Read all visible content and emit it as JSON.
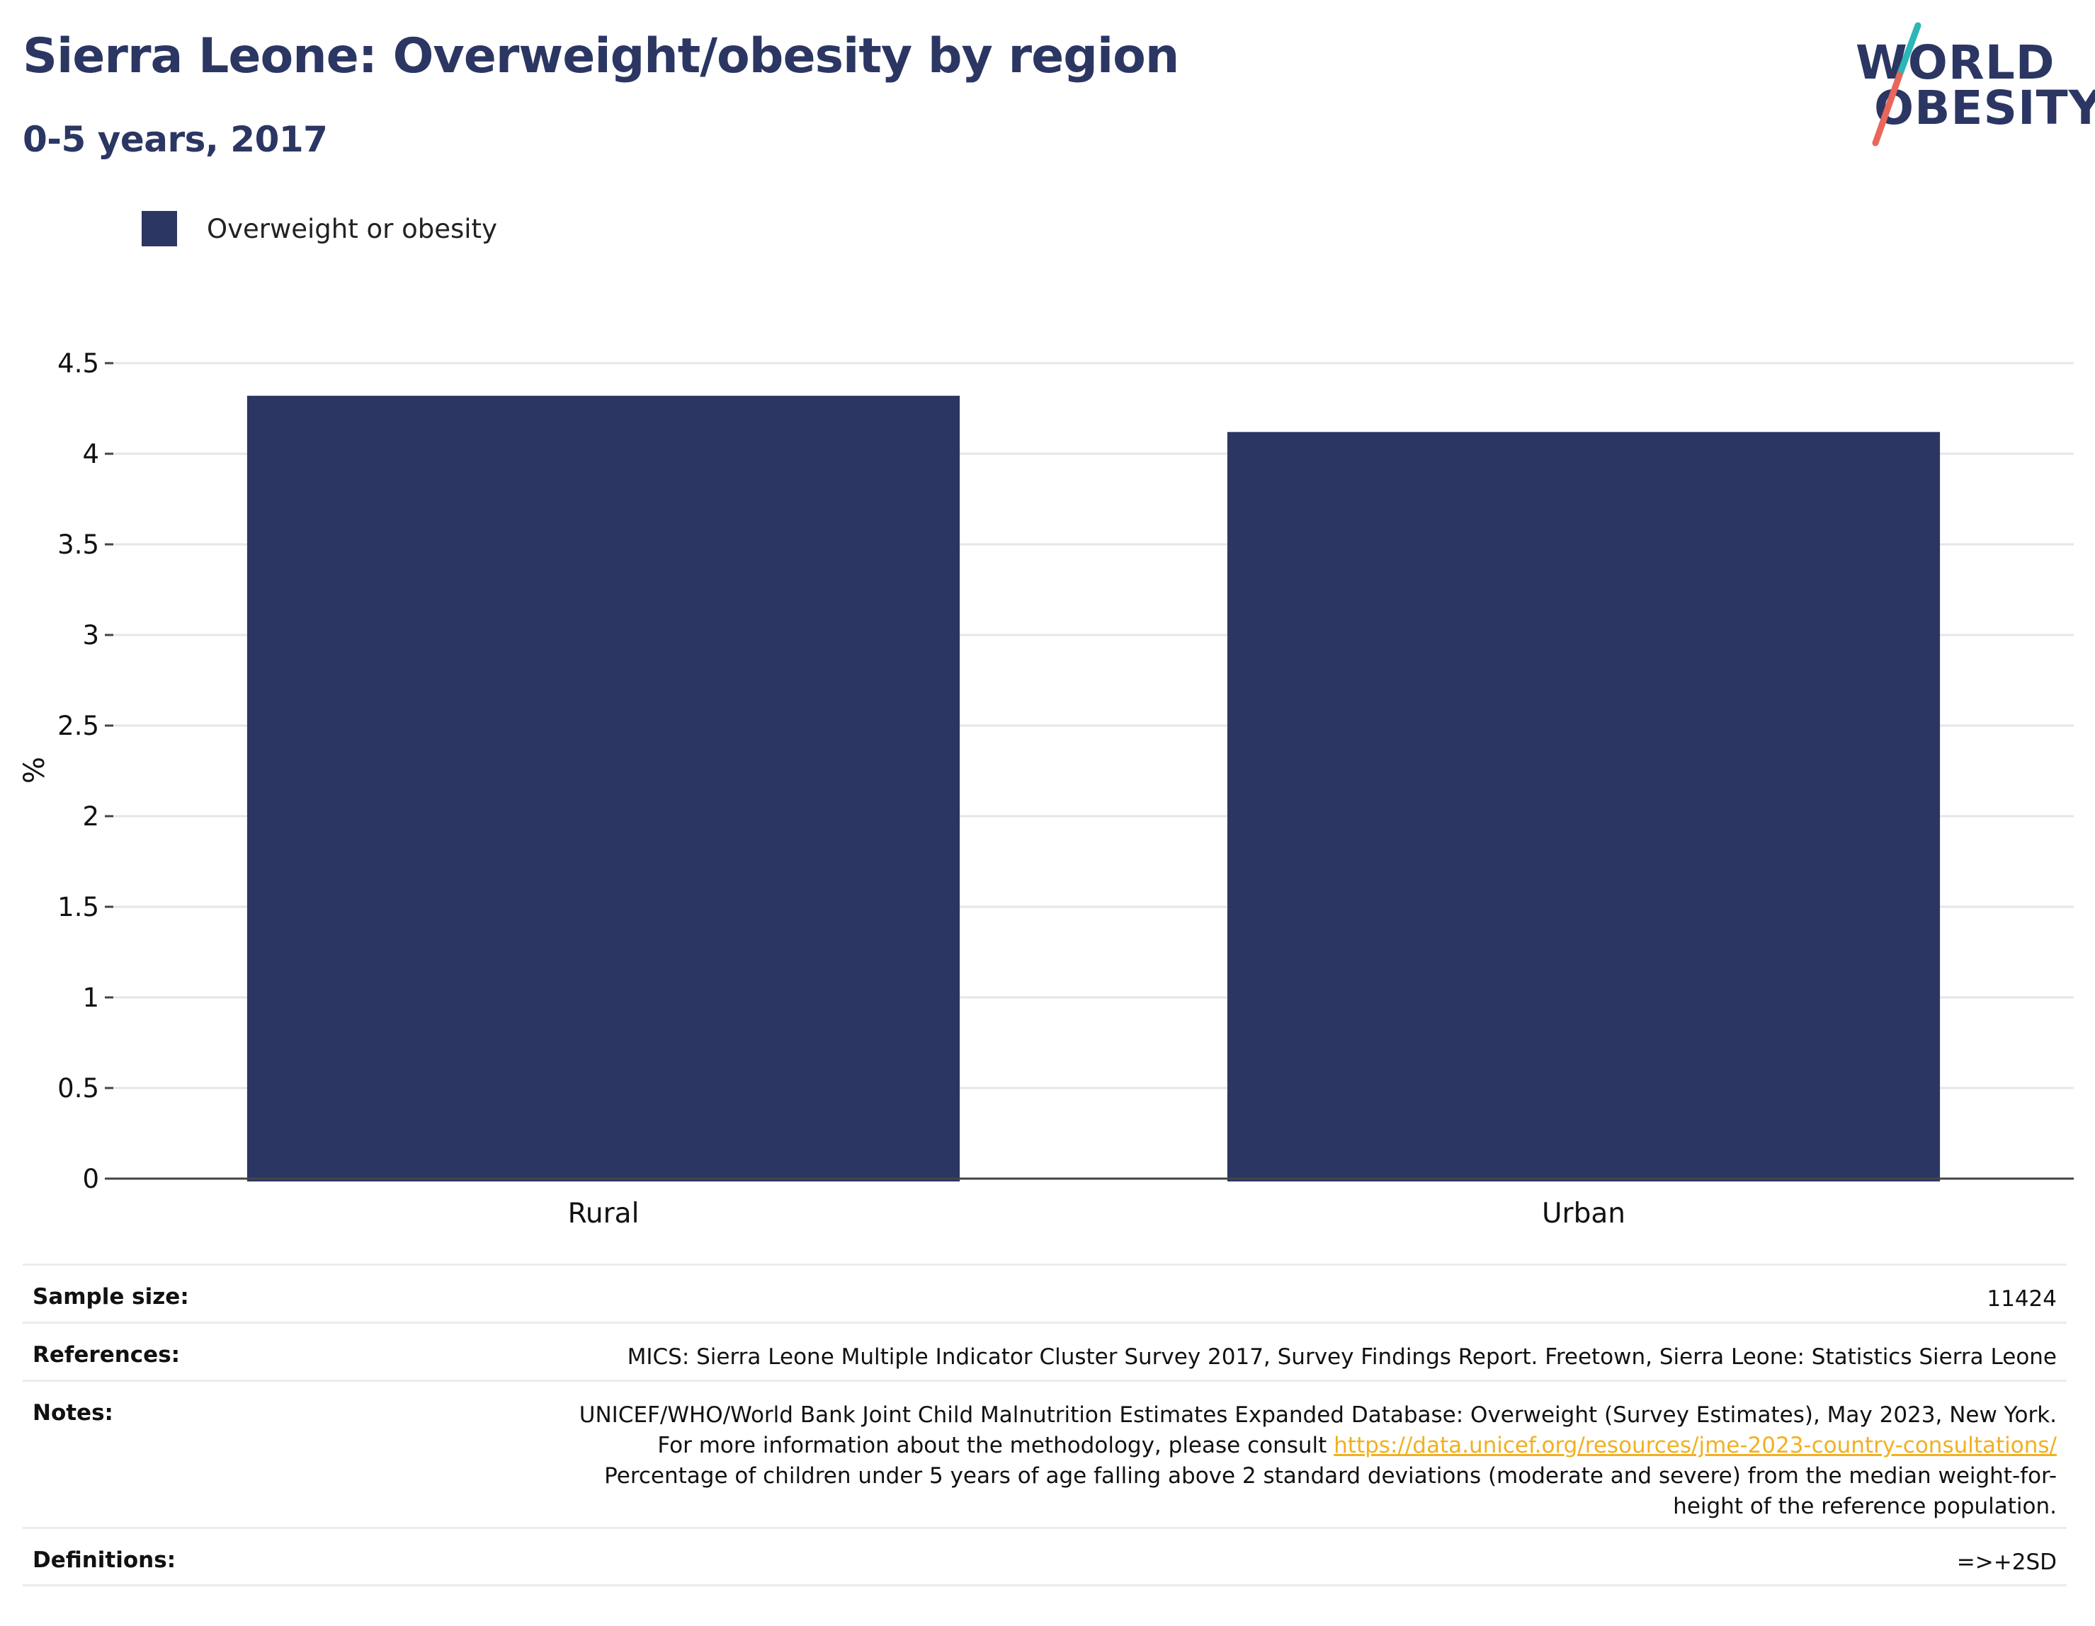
{
  "header": {
    "title": "Sierra Leone: Overweight/obesity by region",
    "subtitle": "0-5 years, 2017"
  },
  "logo": {
    "line1": "WORLD",
    "line2": "OBESITY",
    "colors": {
      "text": "#2b3663",
      "slash_top": "#2ab7b5",
      "slash_bottom": "#e8665a"
    }
  },
  "legend": {
    "items": [
      {
        "label": "Overweight or obesity",
        "color": "#2b3663"
      }
    ]
  },
  "chart_data": {
    "type": "bar",
    "title": "Sierra Leone: Overweight/obesity by region",
    "subtitle": "0-5 years, 2017",
    "categories": [
      "Rural",
      "Urban"
    ],
    "series": [
      {
        "name": "Overweight or obesity",
        "values": [
          4.32,
          4.12
        ],
        "color": "#2b3663"
      }
    ],
    "xlabel": "",
    "ylabel": "%",
    "ylim": [
      0,
      4.5
    ],
    "yticks": [
      0,
      0.5,
      1,
      1.5,
      2,
      2.5,
      3,
      3.5,
      4,
      4.5
    ],
    "ytick_labels": [
      "0",
      "0.5",
      "1",
      "1.5",
      "2",
      "2.5",
      "3",
      "3.5",
      "4",
      "4.5"
    ],
    "grid": true,
    "legend_position": "top-left"
  },
  "info": {
    "sample_size": {
      "label": "Sample size:",
      "value": "11424"
    },
    "references": {
      "label": "References:",
      "value": "MICS: Sierra Leone Multiple Indicator Cluster Survey 2017, Survey Findings Report. Freetown, Sierra Leone: Statistics Sierra Leone"
    },
    "notes": {
      "label": "Notes:",
      "text_before_link": "UNICEF/WHO/World Bank Joint Child Malnutrition Estimates Expanded Database: Overweight (Survey Estimates), May 2023, New York. For more information about the methodology, please consult ",
      "link_text": "https://data.unicef.org/resources/jme-2023-country-consultations/",
      "text_after_link": "Percentage of children under 5 years of age falling above 2 standard deviations (moderate and severe) from the median weight-for-height of the reference population."
    },
    "definitions": {
      "label": "Definitions:",
      "value": "=>+2SD"
    }
  }
}
